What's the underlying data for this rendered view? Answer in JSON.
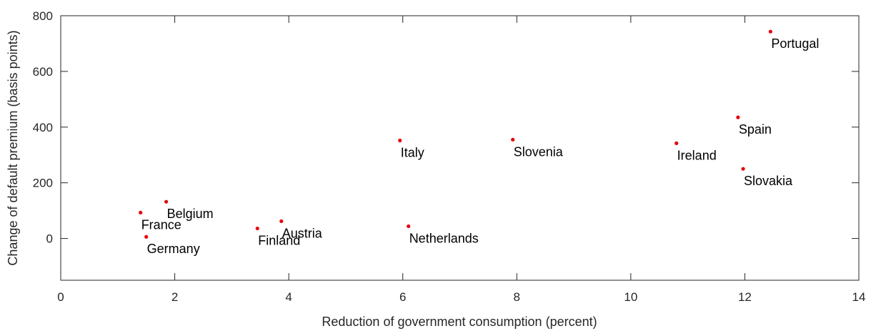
{
  "chart_data": {
    "type": "scatter",
    "title": "",
    "xlabel": "Reduction of government consumption (percent)",
    "ylabel": "Change of default premium (basis points)",
    "xlim": [
      0,
      14
    ],
    "ylim": [
      -150,
      800
    ],
    "xticks": [
      "0",
      "2",
      "4",
      "6",
      "8",
      "10",
      "12",
      "14"
    ],
    "yticks": [
      "0",
      "200",
      "400",
      "600",
      "800"
    ],
    "grid": false,
    "marker_color": "#e8000b",
    "points": [
      {
        "label": "France",
        "x": 1.4,
        "y": 93
      },
      {
        "label": "Belgium",
        "x": 1.85,
        "y": 132
      },
      {
        "label": "Germany",
        "x": 1.5,
        "y": 6
      },
      {
        "label": "Finland",
        "x": 3.45,
        "y": 36
      },
      {
        "label": "Austria",
        "x": 3.87,
        "y": 62
      },
      {
        "label": "Italy",
        "x": 5.95,
        "y": 352
      },
      {
        "label": "Netherlands",
        "x": 6.1,
        "y": 44
      },
      {
        "label": "Slovenia",
        "x": 7.93,
        "y": 355
      },
      {
        "label": "Ireland",
        "x": 10.8,
        "y": 342
      },
      {
        "label": "Spain",
        "x": 11.88,
        "y": 435
      },
      {
        "label": "Slovakia",
        "x": 11.97,
        "y": 250
      },
      {
        "label": "Portugal",
        "x": 12.45,
        "y": 743
      }
    ]
  }
}
